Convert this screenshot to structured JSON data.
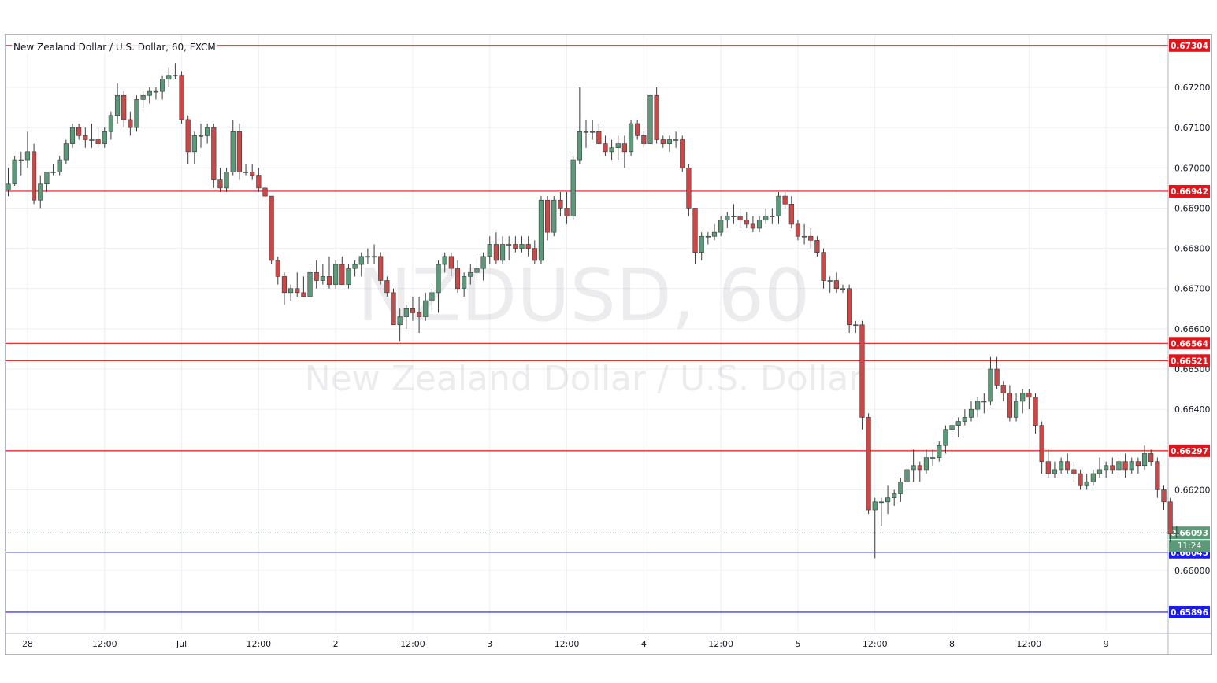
{
  "chart_data": {
    "type": "candlestick",
    "title": "New Zealand Dollar / U.S. Dollar, 60, FXCM",
    "watermark_symbol": "NZDUSD, 60",
    "watermark_name": "New Zealand Dollar / U.S. Dollar",
    "ylim": [
      0.65849,
      0.67331
    ],
    "y_ticks": [
      "0.67200",
      "0.67100",
      "0.67000",
      "0.66900",
      "0.66800",
      "0.66700",
      "0.66600",
      "0.66500",
      "0.66400",
      "0.66300",
      "0.66200",
      "0.66100",
      "0.66000"
    ],
    "x_ticks": [
      {
        "label": "28",
        "bar": 3
      },
      {
        "label": "12:00",
        "bar": 15
      },
      {
        "label": "Jul",
        "bar": 27
      },
      {
        "label": "12:00",
        "bar": 39
      },
      {
        "label": "2",
        "bar": 51
      },
      {
        "label": "12:00",
        "bar": 63
      },
      {
        "label": "3",
        "bar": 75
      },
      {
        "label": "12:00",
        "bar": 87
      },
      {
        "label": "4",
        "bar": 99
      },
      {
        "label": "12:00",
        "bar": 111
      },
      {
        "label": "5",
        "bar": 123
      },
      {
        "label": "12:00",
        "bar": 135
      },
      {
        "label": "8",
        "bar": 147
      },
      {
        "label": "12:00",
        "bar": 159
      },
      {
        "label": "9",
        "bar": 171
      }
    ],
    "levels": [
      {
        "value": "0.67304",
        "color": "#e0151c"
      },
      {
        "value": "0.66942",
        "color": "#e0151c"
      },
      {
        "value": "0.66564",
        "color": "#e0151c"
      },
      {
        "value": "0.66521",
        "color": "#e0151c"
      },
      {
        "value": "0.66297",
        "color": "#e0151c"
      },
      {
        "value": "0.66045",
        "color": "#1a1af0"
      },
      {
        "value": "0.65896",
        "color": "#1a1af0"
      }
    ],
    "last_price": {
      "value": "0.66093",
      "countdown": "11:24",
      "color": "#5b9a78"
    },
    "colors": {
      "up": "#5b9a78",
      "down": "#c94848",
      "grid": "#eceff3",
      "axis_text": "#131722"
    },
    "candles": [
      [
        0.66945,
        0.67,
        0.6693,
        0.6696
      ],
      [
        0.6696,
        0.6703,
        0.66955,
        0.6702
      ],
      [
        0.6702,
        0.6704,
        0.6698,
        0.6702
      ],
      [
        0.6702,
        0.6709,
        0.67,
        0.6704
      ],
      [
        0.6704,
        0.6706,
        0.6691,
        0.6692
      ],
      [
        0.6692,
        0.6698,
        0.669,
        0.6696
      ],
      [
        0.6696,
        0.6699,
        0.6694,
        0.6699
      ],
      [
        0.6699,
        0.6701,
        0.6698,
        0.6699
      ],
      [
        0.6699,
        0.6703,
        0.6698,
        0.6702
      ],
      [
        0.6702,
        0.6707,
        0.6701,
        0.6706
      ],
      [
        0.6706,
        0.6711,
        0.6705,
        0.671
      ],
      [
        0.671,
        0.6711,
        0.6707,
        0.6708
      ],
      [
        0.6708,
        0.671,
        0.6705,
        0.6707
      ],
      [
        0.6707,
        0.6711,
        0.6705,
        0.6707
      ],
      [
        0.6707,
        0.671,
        0.6705,
        0.6706
      ],
      [
        0.6706,
        0.671,
        0.6705,
        0.6709
      ],
      [
        0.6709,
        0.6714,
        0.6707,
        0.6713
      ],
      [
        0.6713,
        0.6721,
        0.6711,
        0.6718
      ],
      [
        0.6718,
        0.6719,
        0.671,
        0.6712
      ],
      [
        0.6712,
        0.6714,
        0.6708,
        0.671
      ],
      [
        0.671,
        0.6718,
        0.6709,
        0.6717
      ],
      [
        0.6717,
        0.6719,
        0.6715,
        0.6718
      ],
      [
        0.6718,
        0.672,
        0.6716,
        0.6719
      ],
      [
        0.6719,
        0.672,
        0.6717,
        0.6719
      ],
      [
        0.6719,
        0.6723,
        0.6717,
        0.6722
      ],
      [
        0.6722,
        0.6725,
        0.672,
        0.6723
      ],
      [
        0.6723,
        0.6726,
        0.6722,
        0.6723
      ],
      [
        0.6723,
        0.6724,
        0.6711,
        0.6712
      ],
      [
        0.6712,
        0.6713,
        0.6701,
        0.6704
      ],
      [
        0.6704,
        0.6709,
        0.6701,
        0.6708
      ],
      [
        0.6708,
        0.6711,
        0.6705,
        0.6708
      ],
      [
        0.6708,
        0.6711,
        0.6706,
        0.671
      ],
      [
        0.671,
        0.6711,
        0.6695,
        0.6697
      ],
      [
        0.6697,
        0.67,
        0.6694,
        0.6695
      ],
      [
        0.6695,
        0.67,
        0.6694,
        0.6699
      ],
      [
        0.6699,
        0.6712,
        0.6698,
        0.6709
      ],
      [
        0.6709,
        0.6711,
        0.6697,
        0.6699
      ],
      [
        0.6699,
        0.6701,
        0.6698,
        0.6699
      ],
      [
        0.6699,
        0.6701,
        0.6697,
        0.6698
      ],
      [
        0.6698,
        0.67,
        0.6694,
        0.6695
      ],
      [
        0.6695,
        0.6696,
        0.6691,
        0.6693
      ],
      [
        0.6693,
        0.6693,
        0.6676,
        0.6677
      ],
      [
        0.6677,
        0.6678,
        0.6671,
        0.6673
      ],
      [
        0.6673,
        0.6674,
        0.6666,
        0.6669
      ],
      [
        0.6669,
        0.6671,
        0.6667,
        0.667
      ],
      [
        0.667,
        0.6674,
        0.6668,
        0.6669
      ],
      [
        0.6669,
        0.6673,
        0.6668,
        0.6668
      ],
      [
        0.6668,
        0.6675,
        0.6668,
        0.6674
      ],
      [
        0.6674,
        0.6677,
        0.667,
        0.6672
      ],
      [
        0.6672,
        0.6676,
        0.6671,
        0.6673
      ],
      [
        0.6673,
        0.6678,
        0.667,
        0.6671
      ],
      [
        0.6671,
        0.6677,
        0.667,
        0.6676
      ],
      [
        0.6676,
        0.6678,
        0.6671,
        0.6671
      ],
      [
        0.6671,
        0.6676,
        0.667,
        0.6675
      ],
      [
        0.6675,
        0.6677,
        0.6673,
        0.6676
      ],
      [
        0.6676,
        0.6679,
        0.6673,
        0.6678
      ],
      [
        0.6678,
        0.668,
        0.6676,
        0.6678
      ],
      [
        0.6678,
        0.6681,
        0.6676,
        0.6678
      ],
      [
        0.6678,
        0.6679,
        0.6671,
        0.6672
      ],
      [
        0.6672,
        0.6673,
        0.6668,
        0.6669
      ],
      [
        0.6669,
        0.667,
        0.6661,
        0.6661
      ],
      [
        0.6661,
        0.6665,
        0.6657,
        0.6663
      ],
      [
        0.6663,
        0.6666,
        0.666,
        0.6665
      ],
      [
        0.6665,
        0.6668,
        0.6662,
        0.6664
      ],
      [
        0.6664,
        0.6668,
        0.6659,
        0.6663
      ],
      [
        0.6663,
        0.6669,
        0.6662,
        0.6667
      ],
      [
        0.6667,
        0.667,
        0.6664,
        0.6669
      ],
      [
        0.6669,
        0.6677,
        0.6664,
        0.6676
      ],
      [
        0.6676,
        0.6679,
        0.6674,
        0.6678
      ],
      [
        0.6678,
        0.6679,
        0.6673,
        0.6675
      ],
      [
        0.6675,
        0.6677,
        0.6669,
        0.667
      ],
      [
        0.667,
        0.6674,
        0.6668,
        0.6673
      ],
      [
        0.6673,
        0.6676,
        0.6671,
        0.6674
      ],
      [
        0.6674,
        0.6678,
        0.6672,
        0.6675
      ],
      [
        0.6675,
        0.6679,
        0.6672,
        0.6678
      ],
      [
        0.6678,
        0.6683,
        0.6676,
        0.6681
      ],
      [
        0.6681,
        0.6684,
        0.6676,
        0.6677
      ],
      [
        0.6677,
        0.6683,
        0.6676,
        0.6681
      ],
      [
        0.6681,
        0.6683,
        0.6677,
        0.6681
      ],
      [
        0.6681,
        0.6683,
        0.6679,
        0.668
      ],
      [
        0.668,
        0.6683,
        0.6679,
        0.6681
      ],
      [
        0.6681,
        0.6683,
        0.6678,
        0.668
      ],
      [
        0.668,
        0.6682,
        0.6676,
        0.6677
      ],
      [
        0.6677,
        0.6693,
        0.6676,
        0.6692
      ],
      [
        0.6692,
        0.6693,
        0.6682,
        0.6684
      ],
      [
        0.6684,
        0.6693,
        0.6683,
        0.6692
      ],
      [
        0.6692,
        0.6694,
        0.6688,
        0.669
      ],
      [
        0.669,
        0.6694,
        0.6686,
        0.6688
      ],
      [
        0.6688,
        0.6703,
        0.6687,
        0.6702
      ],
      [
        0.6702,
        0.672,
        0.6701,
        0.6709
      ],
      [
        0.6709,
        0.6712,
        0.6705,
        0.6709
      ],
      [
        0.6709,
        0.6712,
        0.6707,
        0.6709
      ],
      [
        0.6709,
        0.6711,
        0.6706,
        0.6706
      ],
      [
        0.6706,
        0.6708,
        0.6703,
        0.6704
      ],
      [
        0.6704,
        0.6707,
        0.6702,
        0.6705
      ],
      [
        0.6705,
        0.6708,
        0.6702,
        0.6706
      ],
      [
        0.6706,
        0.6708,
        0.67,
        0.6704
      ],
      [
        0.6704,
        0.6712,
        0.6703,
        0.6711
      ],
      [
        0.6711,
        0.6712,
        0.6707,
        0.6708
      ],
      [
        0.6708,
        0.6709,
        0.6705,
        0.6706
      ],
      [
        0.6706,
        0.6718,
        0.6706,
        0.6718
      ],
      [
        0.6718,
        0.672,
        0.6706,
        0.6707
      ],
      [
        0.6707,
        0.6708,
        0.6705,
        0.6706
      ],
      [
        0.6706,
        0.6708,
        0.6704,
        0.6707
      ],
      [
        0.6707,
        0.6709,
        0.6705,
        0.6707
      ],
      [
        0.6707,
        0.6708,
        0.6699,
        0.67
      ],
      [
        0.67,
        0.6701,
        0.6688,
        0.669
      ],
      [
        0.669,
        0.669,
        0.6676,
        0.6679
      ],
      [
        0.6679,
        0.6684,
        0.6677,
        0.6683
      ],
      [
        0.6683,
        0.6684,
        0.6681,
        0.6683
      ],
      [
        0.6683,
        0.6686,
        0.6682,
        0.6684
      ],
      [
        0.6684,
        0.6688,
        0.6683,
        0.6687
      ],
      [
        0.6687,
        0.6689,
        0.6685,
        0.6688
      ],
      [
        0.6688,
        0.6691,
        0.6686,
        0.6688
      ],
      [
        0.6688,
        0.669,
        0.6685,
        0.6687
      ],
      [
        0.6687,
        0.6689,
        0.6685,
        0.6686
      ],
      [
        0.6686,
        0.6688,
        0.6684,
        0.6685
      ],
      [
        0.6685,
        0.6688,
        0.6684,
        0.6687
      ],
      [
        0.6687,
        0.669,
        0.6686,
        0.6688
      ],
      [
        0.6688,
        0.669,
        0.6686,
        0.6688
      ],
      [
        0.6688,
        0.6694,
        0.6686,
        0.6693
      ],
      [
        0.6693,
        0.6694,
        0.669,
        0.6691
      ],
      [
        0.6691,
        0.6693,
        0.6685,
        0.6686
      ],
      [
        0.6686,
        0.6687,
        0.6682,
        0.6683
      ],
      [
        0.6683,
        0.6686,
        0.6681,
        0.6683
      ],
      [
        0.6683,
        0.6685,
        0.668,
        0.6682
      ],
      [
        0.6682,
        0.6683,
        0.6678,
        0.6679
      ],
      [
        0.6679,
        0.668,
        0.667,
        0.6672
      ],
      [
        0.6672,
        0.6673,
        0.6669,
        0.6672
      ],
      [
        0.6672,
        0.6674,
        0.6669,
        0.667
      ],
      [
        0.667,
        0.6671,
        0.6669,
        0.667
      ],
      [
        0.667,
        0.6671,
        0.6659,
        0.6661
      ],
      [
        0.6661,
        0.6662,
        0.6659,
        0.6661
      ],
      [
        0.6661,
        0.6662,
        0.6635,
        0.6638
      ],
      [
        0.6638,
        0.6639,
        0.6614,
        0.6615
      ],
      [
        0.6615,
        0.6618,
        0.6603,
        0.6617
      ],
      [
        0.6617,
        0.6618,
        0.6611,
        0.6617
      ],
      [
        0.6617,
        0.6621,
        0.6614,
        0.6618
      ],
      [
        0.6618,
        0.662,
        0.6616,
        0.6619
      ],
      [
        0.6619,
        0.6623,
        0.6617,
        0.6622
      ],
      [
        0.6622,
        0.6626,
        0.662,
        0.6625
      ],
      [
        0.6625,
        0.663,
        0.6622,
        0.6626
      ],
      [
        0.6626,
        0.6627,
        0.6622,
        0.6625
      ],
      [
        0.6625,
        0.663,
        0.6624,
        0.6628
      ],
      [
        0.6628,
        0.663,
        0.6626,
        0.6628
      ],
      [
        0.6628,
        0.6632,
        0.6627,
        0.6631
      ],
      [
        0.6631,
        0.6636,
        0.6629,
        0.6635
      ],
      [
        0.6635,
        0.6638,
        0.6633,
        0.6636
      ],
      [
        0.6636,
        0.6638,
        0.6633,
        0.6637
      ],
      [
        0.6637,
        0.664,
        0.6636,
        0.6638
      ],
      [
        0.6638,
        0.6642,
        0.6637,
        0.664
      ],
      [
        0.664,
        0.6643,
        0.6638,
        0.6642
      ],
      [
        0.6642,
        0.6644,
        0.6639,
        0.6642
      ],
      [
        0.6642,
        0.6653,
        0.6641,
        0.665
      ],
      [
        0.665,
        0.6653,
        0.6645,
        0.6646
      ],
      [
        0.6646,
        0.6647,
        0.6642,
        0.6644
      ],
      [
        0.6644,
        0.6646,
        0.6637,
        0.6638
      ],
      [
        0.6638,
        0.6644,
        0.6637,
        0.6642
      ],
      [
        0.6642,
        0.6645,
        0.6639,
        0.6644
      ],
      [
        0.6644,
        0.6645,
        0.664,
        0.6643
      ],
      [
        0.6643,
        0.6644,
        0.6634,
        0.6636
      ],
      [
        0.6636,
        0.6637,
        0.6624,
        0.6627
      ],
      [
        0.6627,
        0.663,
        0.6623,
        0.6624
      ],
      [
        0.6624,
        0.6627,
        0.6623,
        0.6625
      ],
      [
        0.6625,
        0.6628,
        0.6624,
        0.6627
      ],
      [
        0.6627,
        0.6629,
        0.6624,
        0.6625
      ],
      [
        0.6625,
        0.6627,
        0.6622,
        0.6624
      ],
      [
        0.6624,
        0.6625,
        0.662,
        0.6621
      ],
      [
        0.6621,
        0.6624,
        0.662,
        0.6622
      ],
      [
        0.6622,
        0.6625,
        0.6621,
        0.6624
      ],
      [
        0.6624,
        0.6628,
        0.6623,
        0.6625
      ],
      [
        0.6625,
        0.6627,
        0.6623,
        0.6626
      ],
      [
        0.6626,
        0.6628,
        0.6624,
        0.6625
      ],
      [
        0.6625,
        0.6628,
        0.6623,
        0.6627
      ],
      [
        0.6627,
        0.6629,
        0.6623,
        0.6625
      ],
      [
        0.6625,
        0.6628,
        0.6624,
        0.6627
      ],
      [
        0.6627,
        0.6628,
        0.6624,
        0.6626
      ],
      [
        0.6626,
        0.6631,
        0.6625,
        0.6629
      ],
      [
        0.6629,
        0.663,
        0.6626,
        0.6627
      ],
      [
        0.6627,
        0.6628,
        0.6618,
        0.662
      ],
      [
        0.662,
        0.6621,
        0.6615,
        0.6617
      ],
      [
        0.6617,
        0.6618,
        0.6607,
        0.6609
      ],
      [
        0.6609,
        0.6611,
        0.6608,
        0.66093
      ]
    ]
  }
}
